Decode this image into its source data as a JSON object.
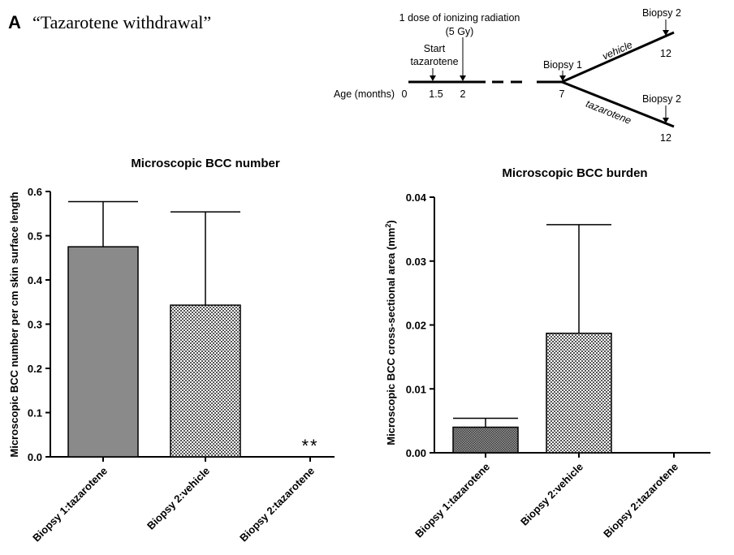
{
  "panel": {
    "letter": "A",
    "title": "“Tazarotene withdrawal”"
  },
  "timeline": {
    "axis_label": "Age (months)",
    "ticks": [
      "0",
      "1.5",
      "2",
      "7",
      "12",
      "12"
    ],
    "radiation_line1": "1 dose of ionizing radiation",
    "radiation_line2": "(5 Gy)",
    "start_line1": "Start",
    "start_line2": "tazarotene",
    "biopsy1": "Biopsy 1",
    "biopsy2_upper": "Biopsy 2",
    "biopsy2_lower": "Biopsy 2",
    "branch_upper": "vehicle",
    "branch_lower": "tazarotene"
  },
  "colors": {
    "bar_solid": "#8a8a8a",
    "bar_hatch_light": "#ffffff",
    "bar_hatch_dark": "#555555",
    "axis": "#000000"
  },
  "chart_data": [
    {
      "type": "bar",
      "title": "Microscopic BCC number",
      "ylabel": "Microscopic BCC number per cm skin surface length",
      "xlabel": "",
      "categories": [
        "Biopsy 1:tazarotene",
        "Biopsy 2:vehicle",
        "Biopsy 2:tazarotene"
      ],
      "values": [
        0.475,
        0.343,
        0
      ],
      "error_upper": [
        0.577,
        0.554,
        null
      ],
      "fill": [
        "solid",
        "hatched",
        "none"
      ],
      "annotations": [
        "",
        "",
        "**"
      ],
      "ylim": [
        0,
        0.6
      ],
      "yticks": [
        "0.0",
        "0.1",
        "0.2",
        "0.3",
        "0.4",
        "0.5",
        "0.6"
      ],
      "grid": false
    },
    {
      "type": "bar",
      "title": "Microscopic BCC burden",
      "ylabel": "Microscopic BCC cross-sectional area (mm²)",
      "xlabel": "",
      "categories": [
        "Biopsy 1:tazarotene",
        "Biopsy 2:vehicle",
        "Biopsy 2:tazarotene"
      ],
      "values": [
        0.004,
        0.0187,
        0
      ],
      "error_upper": [
        0.0054,
        0.0357,
        null
      ],
      "fill": [
        "hatched-dark",
        "hatched",
        "none"
      ],
      "annotations": [
        "",
        "",
        ""
      ],
      "ylim": [
        0,
        0.04
      ],
      "yticks": [
        "0.00",
        "0.01",
        "0.02",
        "0.03",
        "0.04"
      ],
      "grid": false
    }
  ]
}
